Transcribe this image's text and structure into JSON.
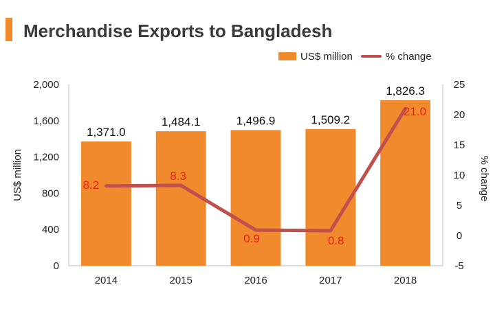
{
  "title": "Merchandise Exports to Bangladesh",
  "colors": {
    "accent": "#f08a2c",
    "bar": "#f08a2c",
    "line": "#c0504d",
    "line_label": "#e8231a"
  },
  "chart_data": {
    "type": "bar",
    "categories": [
      "2014",
      "2015",
      "2016",
      "2017",
      "2018"
    ],
    "series": [
      {
        "name": "US$ million",
        "type": "bar",
        "axis": "left",
        "values": [
          1371.0,
          1484.1,
          1496.9,
          1509.2,
          1826.3
        ],
        "labels": [
          "1,371.0",
          "1,484.1",
          "1,496.9",
          "1,509.2",
          "1,826.3"
        ]
      },
      {
        "name": "% change",
        "type": "line",
        "axis": "right",
        "values": [
          8.2,
          8.3,
          0.9,
          0.8,
          21.0
        ],
        "labels": [
          "8.2",
          "8.3",
          "0.9",
          "0.8",
          "21.0"
        ]
      }
    ],
    "ylabel": "US$ million",
    "ylabel_right": "% change",
    "ylim": [
      0,
      2000
    ],
    "ylim_right": [
      -5,
      25
    ],
    "yticks": [
      "0",
      "400",
      "800",
      "1,200",
      "1,600",
      "2,000"
    ],
    "yticks_right": [
      "-5",
      "0",
      "5",
      "10",
      "15",
      "20",
      "25"
    ],
    "grid": false,
    "legend": "top-right"
  }
}
